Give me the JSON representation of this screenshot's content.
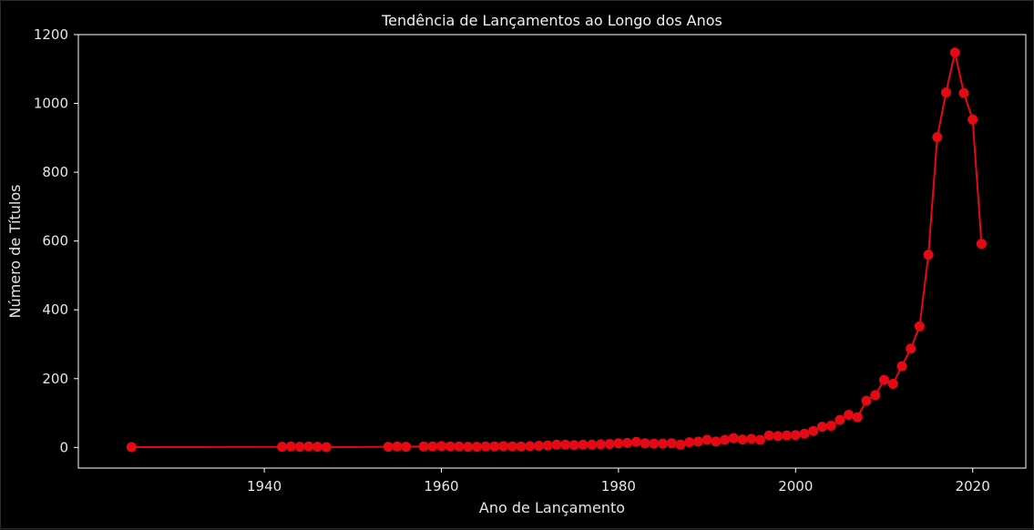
{
  "chart_data": {
    "type": "line",
    "title": "Tendência de Lançamentos ao Longo dos Anos",
    "xlabel": "Ano de Lançamento",
    "ylabel": "Número de Títulos",
    "xlim": [
      1919,
      2026
    ],
    "ylim": [
      -60,
      1200
    ],
    "xticks": [
      1940,
      1960,
      1980,
      2000,
      2020
    ],
    "yticks": [
      0,
      200,
      400,
      600,
      800,
      1000,
      1200
    ],
    "grid": false,
    "line_color": "#e50914",
    "background": "#000000",
    "axes_edge_color": "#ffffff",
    "series": [
      {
        "x": [
          1925,
          1942,
          1943,
          1944,
          1945,
          1946,
          1947,
          1954,
          1955,
          1956,
          1958,
          1959,
          1960,
          1961,
          1962,
          1963,
          1964,
          1965,
          1966,
          1967,
          1968,
          1969,
          1970,
          1971,
          1972,
          1973,
          1974,
          1975,
          1976,
          1977,
          1978,
          1979,
          1980,
          1981,
          1982,
          1983,
          1984,
          1985,
          1986,
          1987,
          1988,
          1989,
          1990,
          1991,
          1992,
          1993,
          1994,
          1995,
          1996,
          1997,
          1998,
          1999,
          2000,
          2001,
          2002,
          2003,
          2004,
          2005,
          2006,
          2007,
          2008,
          2009,
          2010,
          2011,
          2012,
          2013,
          2014,
          2015,
          2016,
          2017,
          2018,
          2019,
          2020,
          2021
        ],
        "y": [
          1,
          2,
          3,
          2,
          3,
          2,
          1,
          2,
          3,
          2,
          3,
          3,
          4,
          3,
          3,
          2,
          2,
          3,
          3,
          4,
          3,
          3,
          4,
          5,
          6,
          8,
          8,
          7,
          8,
          8,
          9,
          10,
          12,
          13,
          16,
          12,
          11,
          11,
          12,
          8,
          15,
          17,
          22,
          17,
          22,
          27,
          23,
          25,
          22,
          35,
          33,
          35,
          36,
          40,
          48,
          60,
          63,
          80,
          95,
          88,
          136,
          152,
          196,
          185,
          236,
          287,
          352,
          560,
          902,
          1032,
          1148,
          1030,
          953,
          592
        ]
      }
    ]
  }
}
